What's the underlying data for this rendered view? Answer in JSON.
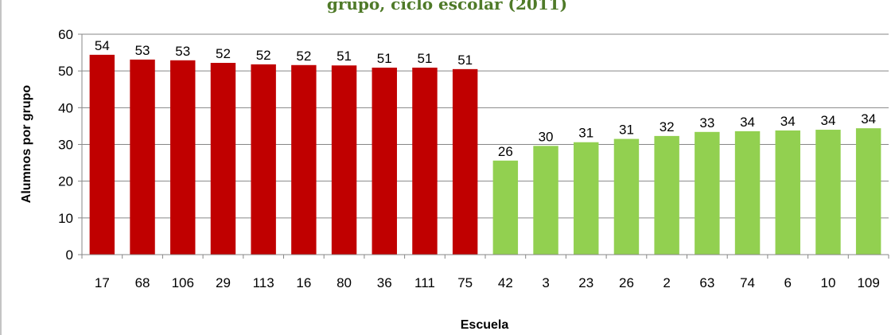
{
  "chart_data": {
    "type": "bar",
    "title": "grupo, ciclo escolar (2011)",
    "xlabel": "Escuela",
    "ylabel": "Alumnos por grupo",
    "ylim": [
      0,
      60
    ],
    "yticks": [
      0,
      10,
      20,
      30,
      40,
      50,
      60
    ],
    "grid": true,
    "categories": [
      "17",
      "68",
      "106",
      "29",
      "113",
      "16",
      "80",
      "36",
      "111",
      "75",
      "42",
      "3",
      "23",
      "26",
      "2",
      "63",
      "74",
      "6",
      "10",
      "109"
    ],
    "values": [
      54.4,
      53.1,
      52.9,
      52.2,
      51.8,
      51.6,
      51.5,
      50.9,
      50.9,
      50.5,
      25.6,
      29.6,
      30.6,
      31.5,
      32.3,
      33.4,
      33.6,
      33.8,
      34.0,
      34.4
    ],
    "data_labels": [
      "54",
      "53",
      "53",
      "52",
      "52",
      "52",
      "51",
      "51",
      "51",
      "51",
      "26",
      "30",
      "31",
      "31",
      "32",
      "33",
      "34",
      "34",
      "34",
      "34"
    ],
    "bar_colors": [
      "#c00000",
      "#c00000",
      "#c00000",
      "#c00000",
      "#c00000",
      "#c00000",
      "#c00000",
      "#c00000",
      "#c00000",
      "#c00000",
      "#92d050",
      "#92d050",
      "#92d050",
      "#92d050",
      "#92d050",
      "#92d050",
      "#92d050",
      "#92d050",
      "#92d050",
      "#92d050"
    ]
  }
}
